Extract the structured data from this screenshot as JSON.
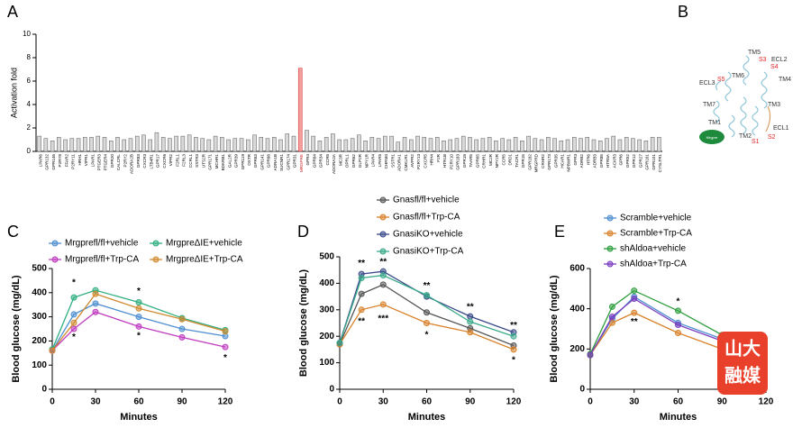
{
  "panels": [
    "A",
    "B",
    "C",
    "D",
    "E"
  ],
  "structure": {
    "labels": [
      "TM5",
      "ECL2",
      "S3",
      "S4",
      "TM6",
      "ECL3",
      "S5",
      "TM4",
      "TM7",
      "TM3",
      "TM1",
      "ECL1",
      "TM2",
      "S1",
      "S2",
      "Mrgpre"
    ]
  },
  "watermark": [
    "山大",
    "融媒"
  ],
  "chart_data": [
    {
      "type": "bar",
      "ylabel": "Activation fold",
      "ylim": [
        0,
        10
      ],
      "yticks": [
        0,
        2,
        4,
        6,
        8,
        10
      ],
      "color": "#d9d9d9",
      "highlight": "MRGPRE",
      "highlight_color": "#f4a0a0",
      "categories": [
        "LPAR6",
        "GPR132",
        "GPR146",
        "P2RY8",
        "FFAR2",
        "P2RY11",
        "HRH1",
        "VIPR1",
        "LPAR1",
        "PTGER3",
        "PTGER4",
        "GPR20",
        "CALCRL",
        "P2RY2",
        "ADORA2B",
        "GPR83",
        "CXCR3",
        "LTB4R1",
        "GPR17",
        "CXCR6",
        "VIPR2",
        "F2RL1",
        "F2RL3",
        "CCRL1",
        "SSTR3",
        "UTS2R",
        "GPR171",
        "MCHR1",
        "BDKRB1",
        "GAL2R",
        "GPR39",
        "GPR119",
        "OXTR",
        "GPR63",
        "GPR141",
        "GPR88",
        "ADRA1B",
        "SUCNR1",
        "GPR174",
        "GPR31",
        "MRGPRE",
        "GPR4",
        "GPR84",
        "GPR34",
        "CCR8",
        "ADORA2A",
        "MC3R",
        "OPRL1",
        "GPR62",
        "GLP2R",
        "NPY1R",
        "LPAR4",
        "LPAR5",
        "CHRM4",
        "SSTR1",
        "ADORA1",
        "CMKLR1",
        "AVPR2",
        "P2RY13",
        "CXCR5",
        "HRH4",
        "F2R",
        "HTR1B",
        "P2RY10",
        "GPR183",
        "GPR18",
        "TAAR5",
        "GPR65",
        "CRHR1",
        "MC2R",
        "NPY2R",
        "CCR5",
        "DRD1",
        "TACR1",
        "GPR15",
        "GPR182",
        "MRGPRD",
        "CRHR2",
        "GPR173",
        "GPR35",
        "HCAR1",
        "NPBWR1",
        "GPR3",
        "ADRB2",
        "HTR6",
        "ADRB3",
        "GPR85",
        "HTR5A",
        "ACKR3",
        "GPR6",
        "GPR52",
        "GPR12",
        "GPR27",
        "GPR161",
        "GPR101",
        "CYSLTR1"
      ],
      "values": [
        1.3,
        1.1,
        0.9,
        1.2,
        1.0,
        1.1,
        1.1,
        1.2,
        1.2,
        1.3,
        1.2,
        0.9,
        1.2,
        1.0,
        1.1,
        1.3,
        1.4,
        1.0,
        1.6,
        1.2,
        1.1,
        1.3,
        1.3,
        1.4,
        1.2,
        1.1,
        1.0,
        1.3,
        1.2,
        1.0,
        1.1,
        1.1,
        1.0,
        1.4,
        1.2,
        1.1,
        1.2,
        1.0,
        1.5,
        1.3,
        7.1,
        1.8,
        1.3,
        0.9,
        1.2,
        1.5,
        1.0,
        1.0,
        1.1,
        1.4,
        0.9,
        1.2,
        1.1,
        1.3,
        1.3,
        0.8,
        1.2,
        1.0,
        1.3,
        1.2,
        1.1,
        1.2,
        0.9,
        1.0,
        1.1,
        1.3,
        1.2,
        1.0,
        1.1,
        1.2,
        0.9,
        1.1,
        1.0,
        1.2,
        0.9,
        1.3,
        1.1,
        1.0,
        1.2,
        1.1,
        0.9,
        1.0,
        1.2,
        1.1,
        1.2,
        1.0,
        0.9,
        1.1,
        1.3,
        1.0,
        1.2,
        1.1,
        1.0,
        0.9,
        1.2,
        1.2
      ]
    },
    {
      "type": "line",
      "xlabel": "Minutes",
      "ylabel": "Blood glucose (mg/dL)",
      "x": [
        0,
        15,
        30,
        60,
        90,
        120
      ],
      "xlim": [
        0,
        120
      ],
      "xticks": [
        0,
        30,
        60,
        90,
        120
      ],
      "ylim": [
        0,
        500
      ],
      "yticks": [
        0,
        100,
        200,
        300,
        400,
        500
      ],
      "legend_columns": 2,
      "series": [
        {
          "name": "Mrgprefl/fl+vehicle",
          "color": "#4f8fd0",
          "values": [
            160,
            310,
            355,
            300,
            250,
            220
          ]
        },
        {
          "name": "MrgpreΔIE+vehicle",
          "color": "#2fae7f",
          "values": [
            165,
            380,
            410,
            360,
            295,
            245
          ]
        },
        {
          "name": "Mrgprefl/fl+Trp-CA",
          "color": "#c03cc0",
          "values": [
            160,
            250,
            320,
            260,
            215,
            175
          ]
        },
        {
          "name": "MrgpreΔIE+Trp-CA",
          "color": "#d08a30",
          "values": [
            160,
            275,
            395,
            335,
            290,
            240
          ]
        }
      ],
      "annotations": [
        {
          "text": "*",
          "x": 15,
          "y": 440
        },
        {
          "text": "*",
          "x": 15,
          "y": 215
        },
        {
          "text": "*",
          "x": 60,
          "y": 405
        },
        {
          "text": "*",
          "x": 60,
          "y": 220
        },
        {
          "text": "*",
          "x": 120,
          "y": 130
        }
      ]
    },
    {
      "type": "line",
      "xlabel": "Minutes",
      "ylabel": "Blood glucose (mg/dL)",
      "x": [
        0,
        15,
        30,
        60,
        90,
        120
      ],
      "xlim": [
        0,
        120
      ],
      "xticks": [
        0,
        30,
        60,
        90,
        120
      ],
      "ylim": [
        0,
        500
      ],
      "yticks": [
        0,
        100,
        200,
        300,
        400,
        500
      ],
      "legend_columns": 1,
      "series": [
        {
          "name": "Gnasfl/fl+vehicle",
          "color": "#555555",
          "values": [
            170,
            360,
            395,
            290,
            230,
            165
          ]
        },
        {
          "name": "Gnasfl/fl+Trp-CA",
          "color": "#d9822b",
          "values": [
            170,
            300,
            320,
            250,
            215,
            150
          ]
        },
        {
          "name": "GnasiKO+vehicle",
          "color": "#3a4a8a",
          "values": [
            175,
            435,
            445,
            350,
            275,
            215
          ]
        },
        {
          "name": "GnasiKO+Trp-CA",
          "color": "#3aaa8a",
          "values": [
            175,
            420,
            430,
            355,
            255,
            200
          ]
        }
      ],
      "annotations": [
        {
          "text": "**",
          "x": 15,
          "y": 475
        },
        {
          "text": "**",
          "x": 30,
          "y": 480
        },
        {
          "text": "**",
          "x": 15,
          "y": 255
        },
        {
          "text": "***",
          "x": 30,
          "y": 265
        },
        {
          "text": "**",
          "x": 60,
          "y": 390
        },
        {
          "text": "*",
          "x": 60,
          "y": 205
        },
        {
          "text": "**",
          "x": 90,
          "y": 310
        },
        {
          "text": "**",
          "x": 120,
          "y": 240
        },
        {
          "text": "*",
          "x": 120,
          "y": 110
        }
      ]
    },
    {
      "type": "line",
      "xlabel": "Minutes",
      "ylabel": "Blood glucose (mg/dL)",
      "x": [
        0,
        15,
        30,
        60,
        90,
        120
      ],
      "xlim": [
        0,
        120
      ],
      "xticks": [
        0,
        30,
        60,
        90,
        120
      ],
      "ylim": [
        0,
        600
      ],
      "yticks": [
        0,
        200,
        400,
        600
      ],
      "legend_columns": 1,
      "series": [
        {
          "name": "Scramble+vehicle",
          "color": "#4f8fd0",
          "values": [
            170,
            350,
            460,
            330,
            250,
            null
          ]
        },
        {
          "name": "Scramble+Trp-CA",
          "color": "#d9822b",
          "values": [
            170,
            330,
            380,
            280,
            200,
            null
          ]
        },
        {
          "name": "shAldoa+vehicle",
          "color": "#2e9e3e",
          "values": [
            175,
            410,
            490,
            390,
            270,
            null
          ]
        },
        {
          "name": "shAldoa+Trp-CA",
          "color": "#7a3cc0",
          "values": [
            170,
            360,
            450,
            320,
            240,
            null
          ]
        }
      ],
      "annotations": [
        {
          "text": "*",
          "x": 60,
          "y": 435
        },
        {
          "text": "**",
          "x": 30,
          "y": 335
        }
      ]
    }
  ]
}
